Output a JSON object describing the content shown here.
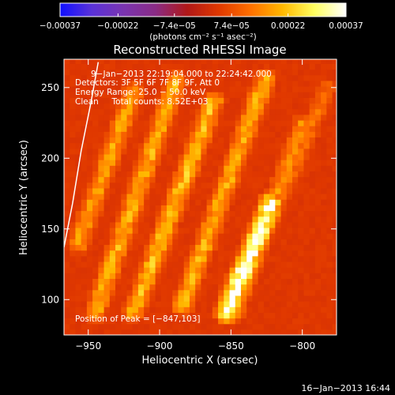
{
  "chart_data": {
    "type": "heatmap",
    "title": "Reconstructed RHESSI Image",
    "xlabel": "Heliocentric X (arcsec)",
    "ylabel": "Heliocentric Y (arcsec)",
    "xlim": [
      -967,
      -776
    ],
    "ylim": [
      75,
      270
    ],
    "x_ticks": [
      -950,
      -900,
      -850,
      -800
    ],
    "y_ticks": [
      100,
      150,
      200,
      250
    ],
    "x_tick_labels": [
      "−950",
      "−900",
      "−850",
      "−800"
    ],
    "y_tick_labels": [
      "100",
      "150",
      "200",
      "250"
    ],
    "colorbar": {
      "units": "(photons cm⁻² s⁻¹ asec⁻²)",
      "range": [
        -0.00037,
        0.00037
      ],
      "ticks": [
        -0.00037,
        -0.00022,
        -7.4e-05,
        7.4e-05,
        0.00022,
        0.00037
      ],
      "tick_labels": [
        "−0.00037",
        "−0.00022",
        "−7.4e−05",
        "7.4e−05",
        "0.00022",
        "0.00037"
      ]
    },
    "colormap_stops": [
      "#1010ff",
      "#5a32d8",
      "#7a34b0",
      "#8a2c86",
      "#b01818",
      "#e03800",
      "#ff7000",
      "#ffb800",
      "#ffff60",
      "#ffffff"
    ],
    "ridges": [
      {
        "x0": -957,
        "y0": 140,
        "x1": -918,
        "y1": 248,
        "peak": 0.00018
      },
      {
        "x0": -945,
        "y0": 92,
        "x1": -888,
        "y1": 255,
        "peak": 0.0002
      },
      {
        "x0": -918,
        "y0": 92,
        "x1": -862,
        "y1": 240,
        "peak": 0.00021
      },
      {
        "x0": -884,
        "y0": 96,
        "x1": -826,
        "y1": 256,
        "peak": 0.0002
      },
      {
        "x0": -853,
        "y0": 92,
        "x1": -822,
        "y1": 168,
        "peak": 0.00037
      },
      {
        "x0": -848,
        "y0": 90,
        "x1": -800,
        "y1": 224,
        "peak": 0.00016
      },
      {
        "x0": -816,
        "y0": 170,
        "x1": -782,
        "y1": 250,
        "peak": 0.00012
      }
    ],
    "limb_arc": [
      [
        -967,
        137
      ],
      [
        -961,
        168
      ],
      [
        -955,
        205
      ],
      [
        -948,
        240
      ],
      [
        -943,
        268
      ]
    ],
    "annotations": {
      "time_range": "9−Jan−2013 22:19:04.000 to 22:24:42.000",
      "detectors": "Detectors: 3F 5F 6F 7F 8F 9F, Att 0",
      "energy": "Energy Range: 25.0 − 50.0 keV",
      "clean": "Clean     Total counts: 8.52E+03",
      "peak": "Position of Peak = [−847,103]"
    }
  },
  "footer": {
    "timestamp": "16−Jan−2013 16:44"
  }
}
